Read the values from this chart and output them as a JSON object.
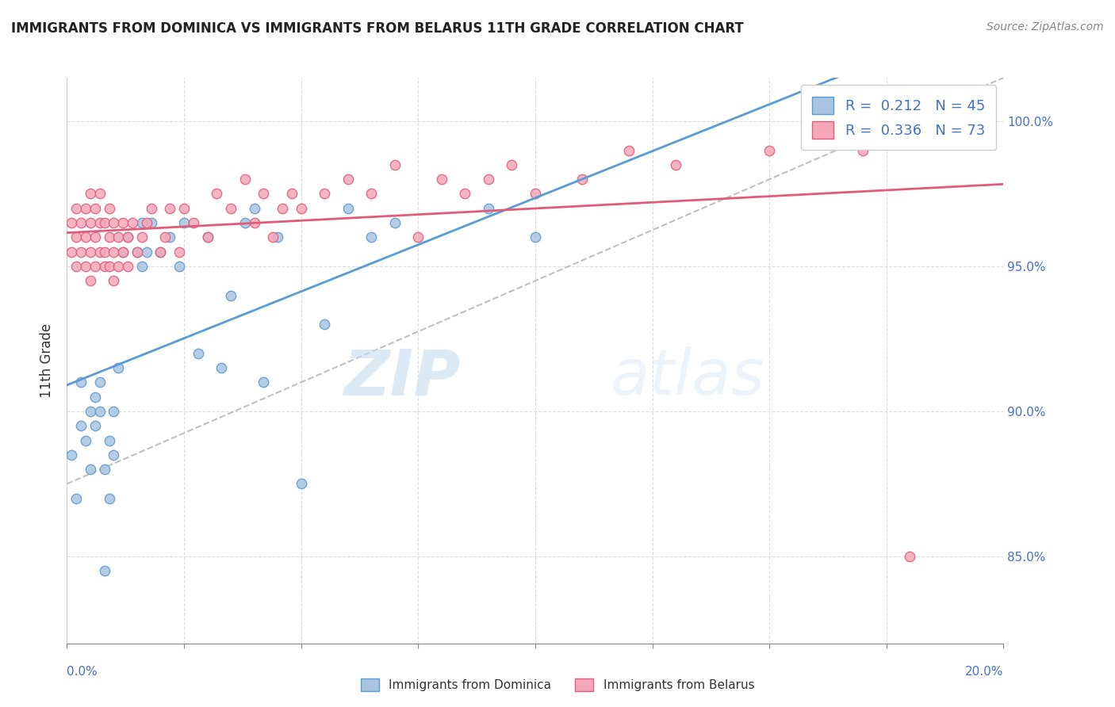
{
  "title": "IMMIGRANTS FROM DOMINICA VS IMMIGRANTS FROM BELARUS 11TH GRADE CORRELATION CHART",
  "source": "Source: ZipAtlas.com",
  "ylabel": "11th Grade",
  "x_min": 0.0,
  "x_max": 0.2,
  "y_min": 82.0,
  "y_max": 101.5,
  "dominica_color": "#a8c4e0",
  "dominica_edge_color": "#5b9bd5",
  "belarus_color": "#f4a7b9",
  "belarus_edge_color": "#e05c7a",
  "dominica_R": 0.212,
  "dominica_N": 45,
  "belarus_R": 0.336,
  "belarus_N": 73,
  "legend_label_dominica": "Immigrants from Dominica",
  "legend_label_belarus": "Immigrants from Belarus",
  "watermark_zip": "ZIP",
  "watermark_atlas": "atlas",
  "dominica_scatter_x": [
    0.001,
    0.002,
    0.003,
    0.003,
    0.004,
    0.005,
    0.005,
    0.006,
    0.006,
    0.007,
    0.007,
    0.008,
    0.008,
    0.009,
    0.009,
    0.01,
    0.01,
    0.011,
    0.012,
    0.013,
    0.015,
    0.016,
    0.016,
    0.017,
    0.018,
    0.02,
    0.022,
    0.024,
    0.025,
    0.028,
    0.03,
    0.033,
    0.035,
    0.038,
    0.04,
    0.042,
    0.045,
    0.05,
    0.055,
    0.06,
    0.065,
    0.07,
    0.09,
    0.1,
    0.19
  ],
  "dominica_scatter_y": [
    88.5,
    87.0,
    89.5,
    91.0,
    89.0,
    90.0,
    88.0,
    90.5,
    89.5,
    91.0,
    90.0,
    84.5,
    88.0,
    89.0,
    87.0,
    90.0,
    88.5,
    91.5,
    95.5,
    96.0,
    95.5,
    95.0,
    96.5,
    95.5,
    96.5,
    95.5,
    96.0,
    95.0,
    96.5,
    92.0,
    96.0,
    91.5,
    94.0,
    96.5,
    97.0,
    91.0,
    96.0,
    87.5,
    93.0,
    97.0,
    96.0,
    96.5,
    97.0,
    96.0,
    100.5
  ],
  "belarus_scatter_x": [
    0.001,
    0.001,
    0.002,
    0.002,
    0.002,
    0.003,
    0.003,
    0.004,
    0.004,
    0.004,
    0.005,
    0.005,
    0.005,
    0.005,
    0.006,
    0.006,
    0.006,
    0.007,
    0.007,
    0.007,
    0.008,
    0.008,
    0.008,
    0.009,
    0.009,
    0.009,
    0.01,
    0.01,
    0.01,
    0.011,
    0.011,
    0.012,
    0.012,
    0.013,
    0.013,
    0.014,
    0.015,
    0.016,
    0.017,
    0.018,
    0.02,
    0.021,
    0.022,
    0.024,
    0.025,
    0.027,
    0.03,
    0.032,
    0.035,
    0.038,
    0.04,
    0.042,
    0.044,
    0.046,
    0.048,
    0.05,
    0.055,
    0.06,
    0.065,
    0.07,
    0.075,
    0.08,
    0.085,
    0.09,
    0.095,
    0.1,
    0.11,
    0.12,
    0.13,
    0.15,
    0.17,
    0.18,
    0.19
  ],
  "belarus_scatter_y": [
    95.5,
    96.5,
    95.0,
    96.0,
    97.0,
    95.5,
    96.5,
    95.0,
    96.0,
    97.0,
    94.5,
    95.5,
    96.5,
    97.5,
    95.0,
    96.0,
    97.0,
    95.5,
    96.5,
    97.5,
    95.0,
    95.5,
    96.5,
    95.0,
    96.0,
    97.0,
    94.5,
    95.5,
    96.5,
    95.0,
    96.0,
    95.5,
    96.5,
    95.0,
    96.0,
    96.5,
    95.5,
    96.0,
    96.5,
    97.0,
    95.5,
    96.0,
    97.0,
    95.5,
    97.0,
    96.5,
    96.0,
    97.5,
    97.0,
    98.0,
    96.5,
    97.5,
    96.0,
    97.0,
    97.5,
    97.0,
    97.5,
    98.0,
    97.5,
    98.5,
    96.0,
    98.0,
    97.5,
    98.0,
    98.5,
    97.5,
    98.0,
    99.0,
    98.5,
    99.0,
    99.0,
    85.0,
    100.5
  ]
}
